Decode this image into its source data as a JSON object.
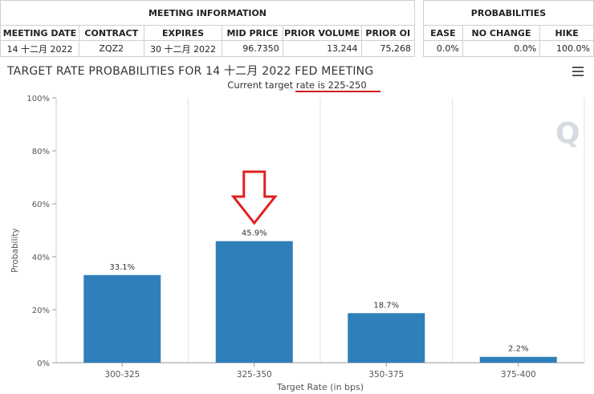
{
  "meeting_info": {
    "header": "MEETING INFORMATION",
    "columns": [
      "MEETING DATE",
      "CONTRACT",
      "EXPIRES",
      "MID PRICE",
      "PRIOR VOLUME",
      "PRIOR OI"
    ],
    "row": [
      "14 十二月 2022",
      "ZQZ2",
      "30 十二月 2022",
      "96.7350",
      "13,244",
      "75,268"
    ]
  },
  "probabilities": {
    "header": "PROBABILITIES",
    "columns": [
      "EASE",
      "NO CHANGE",
      "HIKE"
    ],
    "row": [
      "0.0%",
      "0.0%",
      "100.0%"
    ]
  },
  "chart_data": {
    "type": "bar",
    "title": "TARGET RATE PROBABILITIES FOR 14 十二月 2022 FED MEETING",
    "subtitle": "Current target rate is 225-250",
    "xlabel": "Target Rate (in bps)",
    "ylabel": "Probability",
    "categories": [
      "300-325",
      "325-350",
      "350-375",
      "375-400"
    ],
    "values": [
      33.1,
      45.9,
      18.7,
      2.2
    ],
    "data_labels": [
      "33.1%",
      "45.9%",
      "18.7%",
      "2.2%"
    ],
    "ylim": [
      0,
      100
    ],
    "yticks": [
      0,
      20,
      40,
      60,
      80,
      100
    ],
    "ytick_labels": [
      "0%",
      "20%",
      "40%",
      "60%",
      "80%",
      "100%"
    ],
    "grid": "vertical category bands",
    "bar_color": "#2e7fba",
    "annotation_arrow_color": "#e02020",
    "underline_color": "#d11a1a",
    "watermark": "Q"
  }
}
